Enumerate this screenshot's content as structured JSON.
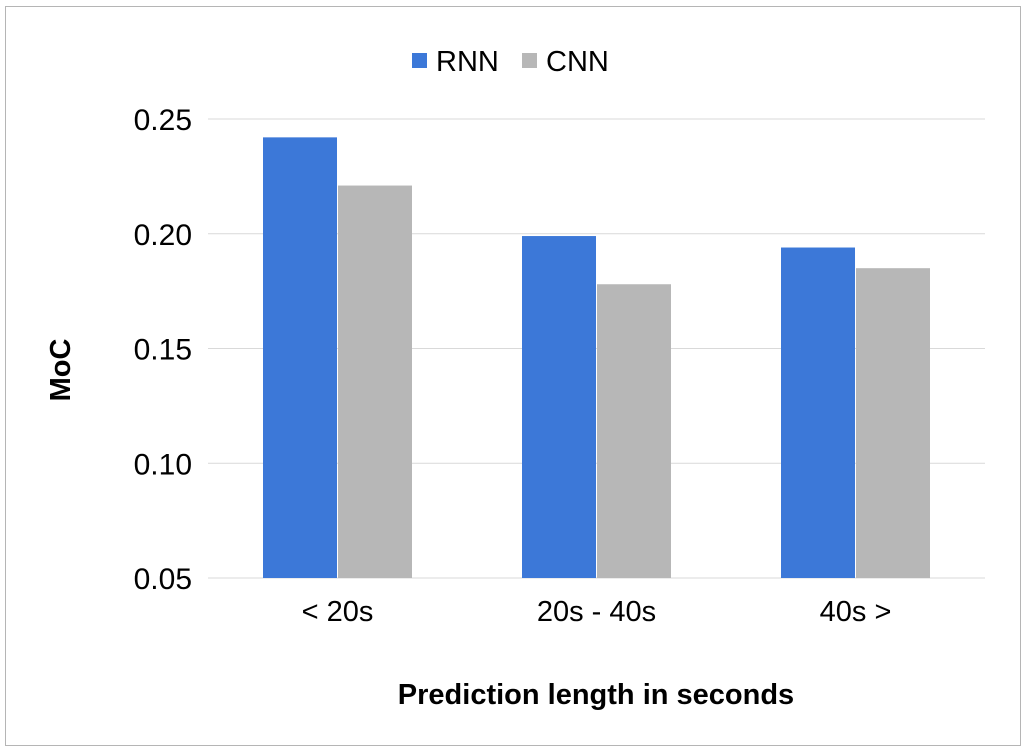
{
  "chart_data": {
    "type": "bar",
    "categories": [
      "< 20s",
      "20s - 40s",
      "40s >"
    ],
    "series": [
      {
        "name": "RNN",
        "values": [
          0.242,
          0.199,
          0.194
        ],
        "color": "#3c78d8"
      },
      {
        "name": "CNN",
        "values": [
          0.221,
          0.178,
          0.185
        ],
        "color": "#b7b7b7"
      }
    ],
    "title": "",
    "xlabel": "Prediction length in seconds",
    "ylabel": "MoC",
    "ylim": [
      0.05,
      0.25
    ],
    "yticks": [
      "0.05",
      "0.10",
      "0.15",
      "0.20",
      "0.25"
    ],
    "ytick_values": [
      0.05,
      0.1,
      0.15,
      0.2,
      0.25
    ],
    "grid": true,
    "legend_position": "top-center",
    "gridline_color": "#d9d9d9"
  }
}
